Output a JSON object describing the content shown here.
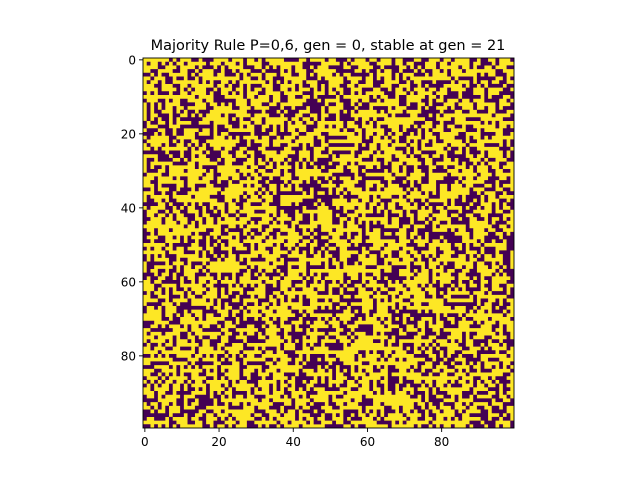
{
  "chart_data": {
    "type": "heatmap",
    "title": "Majority Rule P=0,6, gen = 0, stable at gen = 21",
    "xlabel": "",
    "ylabel": "",
    "rows": 100,
    "cols": 100,
    "values_note_description_free": null,
    "fill_fraction_state1": 0.6,
    "random_seed": 21,
    "states": [
      0,
      1
    ],
    "colormap": {
      "0": "#440154",
      "1": "#fde725"
    },
    "x_ticks": [
      0,
      20,
      40,
      60,
      80
    ],
    "y_ticks": [
      0,
      20,
      40,
      60,
      80
    ],
    "x_tick_labels": [
      "0",
      "20",
      "40",
      "60",
      "80"
    ],
    "y_tick_labels": [
      "0",
      "20",
      "40",
      "60",
      "80"
    ],
    "xlim": [
      -0.5,
      99.5
    ],
    "ylim": [
      99.5,
      -0.5
    ],
    "grid": false
  }
}
